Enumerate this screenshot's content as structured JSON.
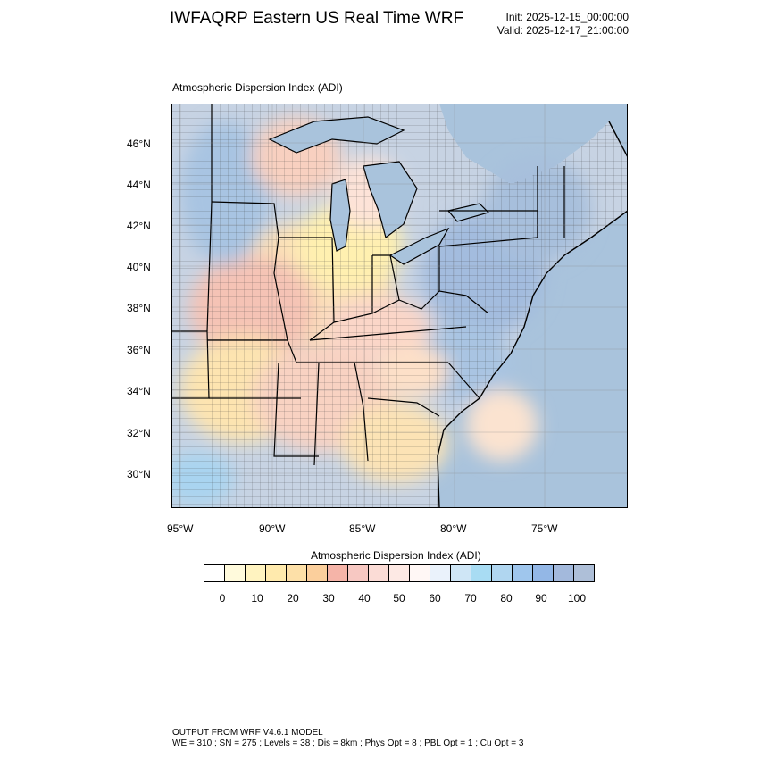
{
  "header": {
    "title": "IWFAQRP Eastern US Real Time WRF",
    "init": "Init: 2025-12-15_00:00:00",
    "valid": "Valid: 2025-12-17_21:00:00"
  },
  "map": {
    "field_label": "Atmospheric Dispersion Index   (ADI)",
    "lat_labels": [
      "46°N",
      "44°N",
      "42°N",
      "40°N",
      "38°N",
      "36°N",
      "34°N",
      "32°N",
      "30°N"
    ],
    "lon_labels": [
      "95°W",
      "90°W",
      "85°W",
      "80°W",
      "75°W"
    ]
  },
  "colorbar": {
    "title": "Atmospheric Dispersion Index  (ADI)",
    "colors": [
      "#ffffff",
      "#fffadc",
      "#fff3c0",
      "#ffeaad",
      "#fde0a8",
      "#fbcf9c",
      "#f5b4a8",
      "#f7c8c2",
      "#fbdcd6",
      "#fde9e4",
      "#fff7f5",
      "#eaf2fb",
      "#cfe6f6",
      "#a8dcf3",
      "#b0d6f0",
      "#9fc6ed",
      "#93b7e6",
      "#a3b9dc",
      "#aebfd8"
    ],
    "tick_labels": [
      "0",
      "10",
      "20",
      "30",
      "40",
      "50",
      "60",
      "70",
      "80",
      "90",
      "100"
    ]
  },
  "footer": {
    "line1": "OUTPUT FROM WRF V4.6.1 MODEL",
    "line2": "WE = 310 ; SN = 275 ; Levels = 38 ; Dis = 8km ; Phys Opt = 8 ; PBL Opt = 1 ; Cu Opt = 3"
  }
}
